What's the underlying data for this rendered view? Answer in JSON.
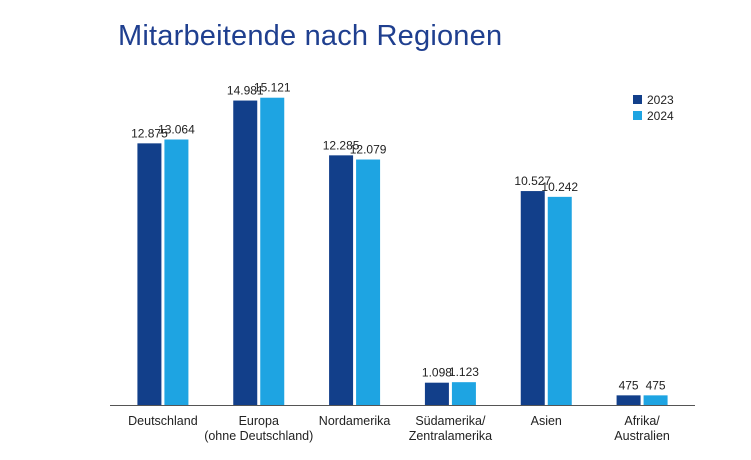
{
  "colors": {
    "series_2023": "#123f8a",
    "series_2024": "#1ea4e2",
    "title": "#1f3f8f",
    "axis": "#555555"
  },
  "chart_data": {
    "type": "bar",
    "title": "Mitarbeitende nach Regionen",
    "xlabel": "",
    "ylabel": "",
    "grid": false,
    "legend_position": "top-right",
    "ylim": [
      0,
      16000
    ],
    "categories": [
      [
        "Deutschland"
      ],
      [
        "Europa",
        "(ohne Deutschland)"
      ],
      [
        "Nordamerika"
      ],
      [
        "Südamerika/",
        "Zentralamerika"
      ],
      [
        "Asien"
      ],
      [
        "Afrika/",
        "Australien"
      ]
    ],
    "series": [
      {
        "name": "2023",
        "values": [
          12875,
          14981,
          12285,
          1098,
          10527,
          475
        ],
        "labels": [
          "12.875",
          "14.981",
          "12.285",
          "1.098",
          "10.527",
          "475"
        ]
      },
      {
        "name": "2024",
        "values": [
          13064,
          15121,
          12079,
          1123,
          10242,
          475
        ],
        "labels": [
          "13.064",
          "15.121",
          "12.079",
          "1.123",
          "10.242",
          "475"
        ]
      }
    ]
  }
}
